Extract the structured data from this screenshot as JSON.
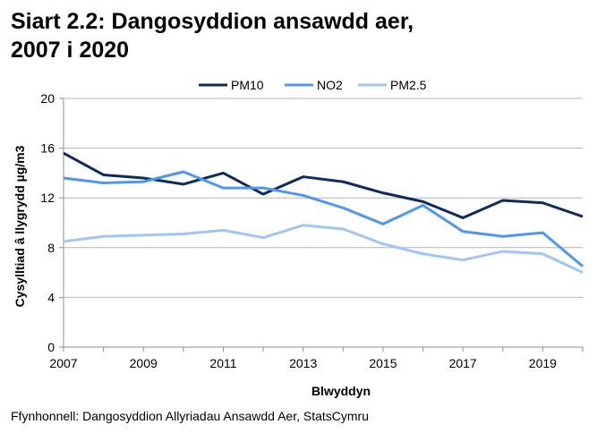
{
  "title_line1": "Siart 2.2: Dangosyddion ansawdd aer,",
  "title_line2": "2007 i 2020",
  "source": "Ffynhonnell: Dangosyddion Allyriadau Ansawdd Aer, StatsCymru",
  "chart_data": {
    "type": "line",
    "title": "Siart 2.2: Dangosyddion ansawdd aer, 2007 i 2020",
    "xlabel": "Blwyddyn",
    "ylabel": "Cysylltiad â llygrydd µg/m3",
    "x": [
      2007,
      2008,
      2009,
      2010,
      2011,
      2012,
      2013,
      2014,
      2015,
      2016,
      2017,
      2018,
      2019,
      2020
    ],
    "xticks": [
      "2007",
      "2009",
      "2011",
      "2013",
      "2015",
      "2017",
      "2019"
    ],
    "yticks": [
      "0",
      "4",
      "8",
      "12",
      "16",
      "20"
    ],
    "ylim": [
      0,
      20
    ],
    "xlim": [
      2007,
      2020
    ],
    "grid": "horizontal",
    "legend": "top",
    "series": [
      {
        "name": "PM10",
        "color": "#0b2d5e",
        "values": [
          15.6,
          13.85,
          13.6,
          13.1,
          14.0,
          12.3,
          13.7,
          13.3,
          12.4,
          11.7,
          10.4,
          11.8,
          11.6,
          10.5
        ]
      },
      {
        "name": "NO2",
        "color": "#4d97f0",
        "values": [
          13.6,
          13.2,
          13.3,
          14.1,
          12.8,
          12.8,
          12.2,
          11.2,
          9.9,
          11.4,
          9.3,
          8.9,
          9.2,
          6.5
        ]
      },
      {
        "name": "PM2.5",
        "color": "#9fc6f5",
        "values": [
          8.5,
          8.9,
          9.0,
          9.1,
          9.4,
          8.8,
          9.8,
          9.5,
          8.3,
          7.5,
          7.0,
          7.7,
          7.5,
          6.0
        ]
      }
    ]
  }
}
